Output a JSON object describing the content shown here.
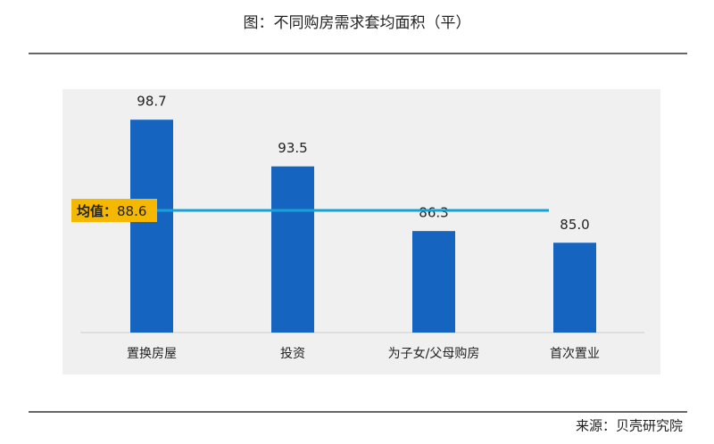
{
  "chart_data": {
    "type": "bar",
    "title": "图：不同购房需求套均面积（平）",
    "source": "来源：贝壳研究院",
    "categories": [
      "置换房屋",
      "投资",
      "为子女/父母购房",
      "首次置业"
    ],
    "values": [
      98.7,
      93.5,
      86.3,
      85.0
    ],
    "value_labels": [
      "98.7",
      "93.5",
      "86.3",
      "85.0"
    ],
    "color": "#1565c0",
    "ylim": [
      75,
      102
    ],
    "average": {
      "label": "均值：",
      "value": 88.6,
      "value_label": "88.6",
      "color": "#1aa0d8",
      "label_color": "#f5b800"
    }
  }
}
